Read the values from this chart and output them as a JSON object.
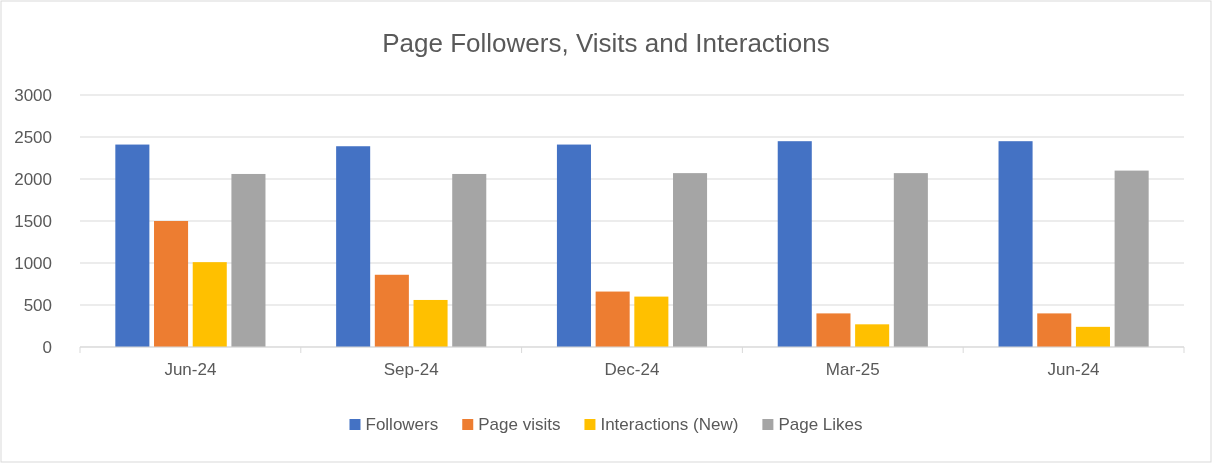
{
  "chart_data": {
    "type": "bar",
    "title": "Page Followers, Visits and Interactions",
    "categories": [
      "Jun-24",
      "Sep-24",
      "Dec-24",
      "Mar-25",
      "Jun-24"
    ],
    "series": [
      {
        "name": "Followers",
        "color": "#4472c4",
        "values": [
          2410,
          2390,
          2410,
          2450,
          2450
        ]
      },
      {
        "name": "Page visits",
        "color": "#ed7d31",
        "values": [
          1500,
          860,
          660,
          400,
          400
        ]
      },
      {
        "name": "Interactions (New)",
        "color": "#ffc000",
        "values": [
          1010,
          560,
          600,
          270,
          240
        ]
      },
      {
        "name": "Page Likes",
        "color": "#a5a5a5",
        "values": [
          2060,
          2060,
          2070,
          2070,
          2100
        ]
      }
    ],
    "ylim": [
      0,
      3000
    ],
    "yticks": [
      0,
      500,
      1000,
      1500,
      2000,
      2500,
      3000
    ],
    "grid": "y",
    "legend": "bottom"
  }
}
